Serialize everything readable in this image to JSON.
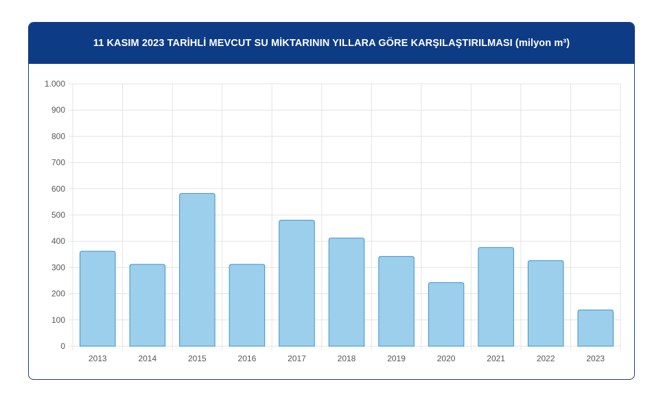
{
  "header": {
    "title": "11 KASIM 2023 TARİHLİ MEVCUT SU MİKTARININ YILLARA GÖRE KARŞILAŞTIRILMASI (milyon m³)"
  },
  "colors": {
    "header_bg": "#0e3b86",
    "bar_fill": "#9ccfec",
    "bar_stroke": "#3a93c9",
    "grid": "#e3e3e3"
  },
  "chart_data": {
    "type": "bar",
    "title": "11 KASIM 2023 TARİHLİ MEVCUT SU MİKTARININ YILLARA GÖRE KARŞILAŞTIRILMASI (milyon m³)",
    "categories": [
      "2013",
      "2014",
      "2015",
      "2016",
      "2017",
      "2018",
      "2019",
      "2020",
      "2021",
      "2022",
      "2023"
    ],
    "values": [
      362,
      312,
      582,
      312,
      480,
      412,
      342,
      242,
      376,
      326,
      138
    ],
    "ylim": [
      0,
      1000
    ],
    "yticks": [
      0,
      100,
      200,
      300,
      400,
      500,
      600,
      700,
      800,
      900,
      1000
    ],
    "ytick_labels": [
      "0",
      "100",
      "200",
      "300",
      "400",
      "500",
      "600",
      "700",
      "800",
      "900",
      "1.000"
    ],
    "xlabel": "",
    "ylabel": "",
    "grid": true,
    "legend": "none"
  }
}
